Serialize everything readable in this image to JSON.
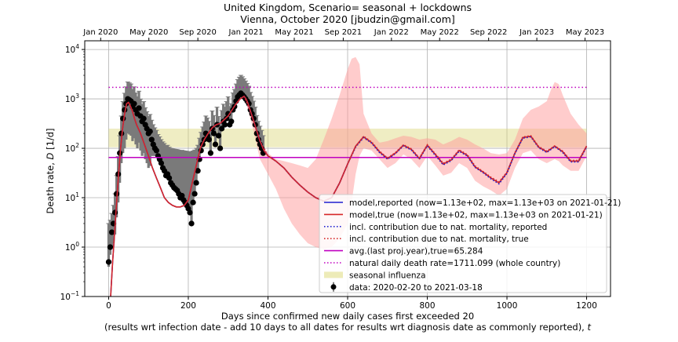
{
  "chart_data": {
    "type": "line",
    "title_line1": "United Kingdom, Scenario= seasonal + lockdowns",
    "title_line2": "Vienna, October 2020 [jbudzin@gmail.com]",
    "xlabel_line1": "Days since confirmed new daily cases first exceeded 20",
    "xlabel_line2": "(results wrt infection date - add 10 days to all dates for results wrt diagnosis date as commonly reported), ",
    "xlabel_t": "t",
    "ylabel_main": "Death rate, ",
    "ylabel_symbol": "D",
    "ylabel_unit": " [1/d]",
    "y_scale": "log",
    "xlim": [
      -60,
      1260
    ],
    "ylim": [
      0.1,
      15000
    ],
    "x_ticks": [
      0,
      200,
      400,
      600,
      800,
      1000,
      1200
    ],
    "x_tick_labels": [
      "0",
      "200",
      "400",
      "600",
      "800",
      "1000",
      "1200"
    ],
    "y_ticks": [
      0.1,
      1,
      10,
      100,
      1000,
      10000
    ],
    "y_tick_labels": [
      {
        "base": "10",
        "exp": "−1"
      },
      {
        "base": "10",
        "exp": "0"
      },
      {
        "base": "10",
        "exp": "1"
      },
      {
        "base": "10",
        "exp": "2"
      },
      {
        "base": "10",
        "exp": "3"
      },
      {
        "base": "10",
        "exp": "4"
      }
    ],
    "top_axis": {
      "ticks": [
        -20,
        101,
        224,
        345,
        466,
        589,
        710,
        831,
        954,
        1075,
        1196
      ],
      "labels": [
        "Jan 2020",
        "May 2020",
        "Sep 2020",
        "Jan 2021",
        "May 2021",
        "Sep 2021",
        "Jan 2022",
        "May 2022",
        "Sep 2022",
        "Jan 2023",
        "May 2023"
      ]
    },
    "grid": true,
    "legend_position": "lower-right",
    "legend": [
      {
        "label": "model,reported (now=1.13e+02, max=1.13e+03 on 2021-01-21)",
        "color": "#1f1fd0",
        "style": "solid"
      },
      {
        "label": "model,true (now=1.13e+02, max=1.13e+03 on 2021-01-21)",
        "color": "#d62728",
        "style": "solid"
      },
      {
        "label": "incl. contribution due to nat. mortality, reported",
        "color": "#1f1fd0",
        "style": "dotted"
      },
      {
        "label": "incl. contribution due to nat. mortality, true",
        "color": "#d62728",
        "style": "dotted"
      },
      {
        "label": "avg.(last proj.year),true=65.284",
        "color": "#c000c0",
        "style": "solid"
      },
      {
        "label": "natural daily death rate=1711.099 (whole country)",
        "color": "#c000c0",
        "style": "dotted"
      },
      {
        "label": "seasonal influenza",
        "color": "#e6e29a",
        "style": "patch"
      },
      {
        "label": "data: 2020-02-20 to 2021-03-18",
        "color": "#000000",
        "style": "marker"
      }
    ],
    "reference_lines": {
      "avg_last_proj_year_true": 65.284,
      "natural_daily_death_rate": 1711.099,
      "seasonal_influenza_band": [
        105,
        250
      ]
    },
    "model_true": {
      "x": [
        5,
        10,
        15,
        20,
        25,
        30,
        35,
        40,
        45,
        50,
        55,
        60,
        65,
        70,
        80,
        90,
        100,
        110,
        120,
        130,
        140,
        150,
        160,
        170,
        180,
        190,
        200,
        210,
        220,
        230,
        240,
        250,
        260,
        270,
        280,
        290,
        300,
        310,
        320,
        330,
        340,
        345,
        350,
        360,
        370,
        380,
        390,
        400,
        410,
        420,
        440,
        460,
        480,
        500,
        520,
        540,
        560,
        580,
        600,
        620,
        640,
        660,
        680,
        700,
        720,
        740,
        760,
        780,
        800,
        820,
        840,
        860,
        880,
        900,
        920,
        940,
        960,
        980,
        1000,
        1020,
        1040,
        1060,
        1080,
        1100,
        1120,
        1140,
        1160,
        1180,
        1200
      ],
      "y": [
        0.1,
        0.5,
        2,
        8,
        30,
        100,
        250,
        500,
        800,
        850,
        700,
        550,
        400,
        300,
        200,
        120,
        70,
        40,
        25,
        16,
        10,
        8,
        7,
        6.5,
        6.5,
        7,
        9,
        20,
        45,
        100,
        150,
        200,
        260,
        300,
        320,
        380,
        450,
        600,
        800,
        1000,
        1130,
        1000,
        800,
        450,
        250,
        140,
        90,
        70,
        62,
        55,
        40,
        26,
        18,
        13,
        10,
        8.5,
        10,
        20,
        48,
        110,
        170,
        130,
        85,
        62,
        80,
        115,
        95,
        62,
        115,
        75,
        48,
        58,
        90,
        72,
        42,
        33,
        25,
        20,
        32,
        80,
        165,
        175,
        105,
        85,
        110,
        85,
        55,
        55,
        110
      ]
    },
    "model_reported": {
      "x": [
        5,
        10,
        15,
        20,
        25,
        30,
        35,
        40,
        45,
        50,
        55,
        60,
        65,
        70,
        80,
        90,
        100,
        110,
        120,
        130,
        140,
        150,
        160,
        170,
        180,
        190,
        200,
        210,
        220,
        230,
        240,
        250,
        260,
        270,
        280,
        290,
        300,
        310,
        320,
        330,
        340,
        345,
        350,
        360,
        370,
        380,
        390,
        400,
        410,
        420,
        440,
        460,
        480,
        500,
        520,
        540,
        560,
        580,
        600,
        620,
        640,
        660,
        680,
        700,
        720,
        740,
        760,
        780,
        800,
        820,
        840,
        860,
        880,
        900,
        920,
        940,
        960,
        980,
        1000,
        1020,
        1040,
        1060,
        1080,
        1100,
        1120,
        1140,
        1160,
        1180,
        1200
      ],
      "y": [
        0.1,
        0.5,
        2,
        8,
        30,
        100,
        250,
        500,
        800,
        850,
        700,
        550,
        400,
        300,
        200,
        120,
        70,
        40,
        25,
        16,
        10,
        8,
        7,
        6.5,
        6.5,
        7,
        9,
        20,
        45,
        100,
        150,
        200,
        260,
        300,
        320,
        380,
        450,
        600,
        800,
        1000,
        1130,
        1000,
        800,
        450,
        250,
        140,
        90,
        70,
        62,
        55,
        40,
        26,
        18,
        13,
        10,
        8.5,
        10,
        20,
        48,
        110,
        170,
        130,
        85,
        62,
        80,
        115,
        95,
        62,
        115,
        75,
        48,
        58,
        90,
        72,
        42,
        33,
        25,
        20,
        32,
        80,
        165,
        175,
        105,
        85,
        110,
        85,
        55,
        55,
        110
      ]
    },
    "model_true_incl_nat": {
      "x": [
        340,
        360,
        380,
        400,
        410,
        420,
        440,
        460,
        480,
        500,
        520,
        540,
        560,
        580,
        600,
        620,
        640,
        660,
        680,
        700,
        720,
        740,
        760,
        780,
        800,
        820,
        840,
        860,
        880,
        900,
        920,
        940,
        960,
        980,
        1000,
        1020,
        1040,
        1060,
        1080,
        1100,
        1120,
        1140,
        1160,
        1180,
        1200
      ],
      "y": [
        1130,
        450,
        140,
        70,
        62,
        55,
        40,
        26,
        18,
        13,
        10,
        8.5,
        10,
        20,
        48,
        110,
        175,
        135,
        88,
        64,
        82,
        118,
        98,
        64,
        118,
        78,
        50,
        60,
        93,
        75,
        44,
        34,
        26,
        21,
        33,
        82,
        170,
        180,
        108,
        88,
        112,
        88,
        57,
        57,
        112
      ]
    },
    "model_reported_incl_nat": {
      "x": [
        340,
        360,
        380,
        400,
        410,
        420,
        440,
        460,
        480,
        500,
        520,
        540,
        560,
        580,
        600,
        620,
        640,
        660,
        680,
        700,
        720,
        740,
        760,
        780,
        800,
        820,
        840,
        860,
        880,
        900,
        920,
        940,
        960,
        980,
        1000,
        1020,
        1040,
        1060,
        1080,
        1100,
        1120,
        1140,
        1160,
        1180,
        1200
      ],
      "y": [
        1130,
        450,
        140,
        70,
        62,
        55,
        40,
        26,
        18,
        13,
        10,
        8.5,
        10,
        20,
        48,
        105,
        165,
        128,
        82,
        60,
        78,
        112,
        92,
        60,
        112,
        72,
        46,
        56,
        87,
        70,
        41,
        32,
        24,
        19,
        31,
        78,
        160,
        170,
        102,
        82,
        108,
        82,
        53,
        53,
        106
      ]
    },
    "uncertainty_band": {
      "x": [
        345,
        360,
        380,
        400,
        420,
        440,
        460,
        480,
        500,
        520,
        540,
        560,
        580,
        600,
        610,
        620,
        630,
        640,
        660,
        680,
        700,
        720,
        740,
        760,
        780,
        800,
        820,
        840,
        860,
        880,
        900,
        920,
        940,
        960,
        980,
        1000,
        1020,
        1040,
        1060,
        1080,
        1100,
        1110,
        1120,
        1130,
        1140,
        1160,
        1180,
        1200
      ],
      "upper": [
        1200,
        600,
        150,
        80,
        60,
        55,
        50,
        45,
        40,
        60,
        150,
        400,
        1200,
        4000,
        6500,
        7000,
        5000,
        500,
        200,
        130,
        140,
        160,
        180,
        170,
        150,
        160,
        150,
        120,
        140,
        170,
        150,
        120,
        100,
        80,
        75,
        80,
        150,
        400,
        600,
        700,
        900,
        1500,
        2200,
        2000,
        1200,
        500,
        300,
        200
      ],
      "lower": [
        800,
        300,
        60,
        30,
        15,
        6,
        3,
        1.8,
        1.2,
        1.0,
        0.9,
        1.0,
        1.5,
        3,
        8,
        30,
        70,
        100,
        90,
        60,
        40,
        50,
        75,
        60,
        40,
        70,
        45,
        28,
        32,
        50,
        40,
        22,
        17,
        14,
        11,
        15,
        40,
        80,
        90,
        60,
        50,
        55,
        60,
        55,
        45,
        35,
        35,
        70
      ]
    },
    "data": {
      "x": [
        0,
        4,
        8,
        12,
        16,
        20,
        24,
        28,
        32,
        36,
        40,
        44,
        48,
        52,
        56,
        60,
        64,
        68,
        72,
        76,
        80,
        84,
        88,
        92,
        96,
        100,
        104,
        108,
        112,
        116,
        120,
        124,
        128,
        132,
        136,
        140,
        144,
        148,
        152,
        156,
        160,
        164,
        168,
        172,
        176,
        180,
        184,
        188,
        192,
        196,
        200,
        204,
        208,
        212,
        216,
        220,
        224,
        228,
        232,
        236,
        240,
        244,
        248,
        252,
        256,
        260,
        264,
        268,
        272,
        276,
        280,
        284,
        288,
        292,
        296,
        300,
        304,
        308,
        312,
        316,
        320,
        324,
        328,
        332,
        336,
        340,
        344,
        348,
        352,
        356,
        360,
        364,
        368,
        372,
        376,
        380,
        384,
        388
      ],
      "y": [
        0.5,
        1,
        2,
        3,
        5,
        12,
        30,
        80,
        200,
        400,
        600,
        800,
        1000,
        950,
        900,
        700,
        800,
        600,
        500,
        650,
        450,
        350,
        400,
        300,
        250,
        200,
        220,
        150,
        120,
        100,
        90,
        70,
        60,
        50,
        40,
        35,
        28,
        30,
        25,
        20,
        18,
        16,
        15,
        14,
        12,
        10,
        11,
        9,
        8,
        7,
        6,
        5,
        3,
        8,
        12,
        20,
        35,
        60,
        90,
        120,
        150,
        200,
        180,
        150,
        80,
        250,
        200,
        120,
        300,
        180,
        100,
        250,
        350,
        300,
        400,
        500,
        300,
        350,
        600,
        700,
        900,
        1100,
        1200,
        1300,
        1200,
        1100,
        1000,
        900,
        800,
        600,
        500,
        400,
        300,
        200,
        150,
        120,
        100,
        80
      ],
      "err_up": [
        2.5,
        2.5,
        2.8,
        4,
        7,
        16,
        38,
        100,
        250,
        480,
        700,
        950,
        1200,
        1150,
        1100,
        850,
        950,
        720,
        600,
        780,
        540,
        420,
        480,
        360,
        300,
        240,
        264,
        220,
        180,
        160,
        140,
        120,
        110,
        100,
        95,
        90,
        85,
        85,
        80,
        80,
        80,
        80,
        80,
        80,
        80,
        80,
        80,
        80,
        80,
        80,
        80,
        80,
        80,
        80,
        80,
        80,
        80,
        100,
        120,
        150,
        190,
        250,
        230,
        200,
        160,
        320,
        260,
        200,
        380,
        260,
        200,
        330,
        430,
        380,
        480,
        600,
        400,
        450,
        720,
        850,
        1100,
        1350,
        1550,
        1700,
        1600,
        1450,
        1300,
        1150,
        1000,
        750,
        620,
        500,
        380,
        260,
        200,
        160,
        130,
        100
      ],
      "err_down": [
        0.1,
        0.3,
        1.0,
        1.8,
        3.2,
        8,
        22,
        60,
        150,
        320,
        500,
        650,
        800,
        760,
        720,
        560,
        640,
        480,
        400,
        520,
        360,
        280,
        320,
        240,
        200,
        160,
        176,
        80,
        50,
        30,
        20,
        12,
        8,
        5,
        3,
        2,
        1.5,
        1.2,
        1.0,
        0.8,
        0.6,
        0.5,
        0.4,
        0.35,
        0.3,
        0.25,
        0.2,
        0.18,
        0.15,
        0.12,
        0.1,
        0.1,
        0.1,
        0.1,
        0.1,
        0.1,
        0.1,
        0.1,
        0.1,
        0.1,
        0.1,
        0.1,
        0.1,
        0.1,
        0.1,
        0.1,
        0.1,
        0.1,
        0.1,
        0.1,
        0.1,
        0.1,
        0.1,
        0.1,
        0.1,
        0.1,
        0.1,
        0.1,
        0.1,
        0.1,
        0.1,
        0.1,
        0.1,
        0.1,
        0.1,
        0.1,
        0.1,
        0.1,
        0.1,
        0.1,
        0.1,
        0.1,
        0.1,
        0.1,
        0.1,
        0.1,
        0.1,
        0.1
      ]
    }
  }
}
